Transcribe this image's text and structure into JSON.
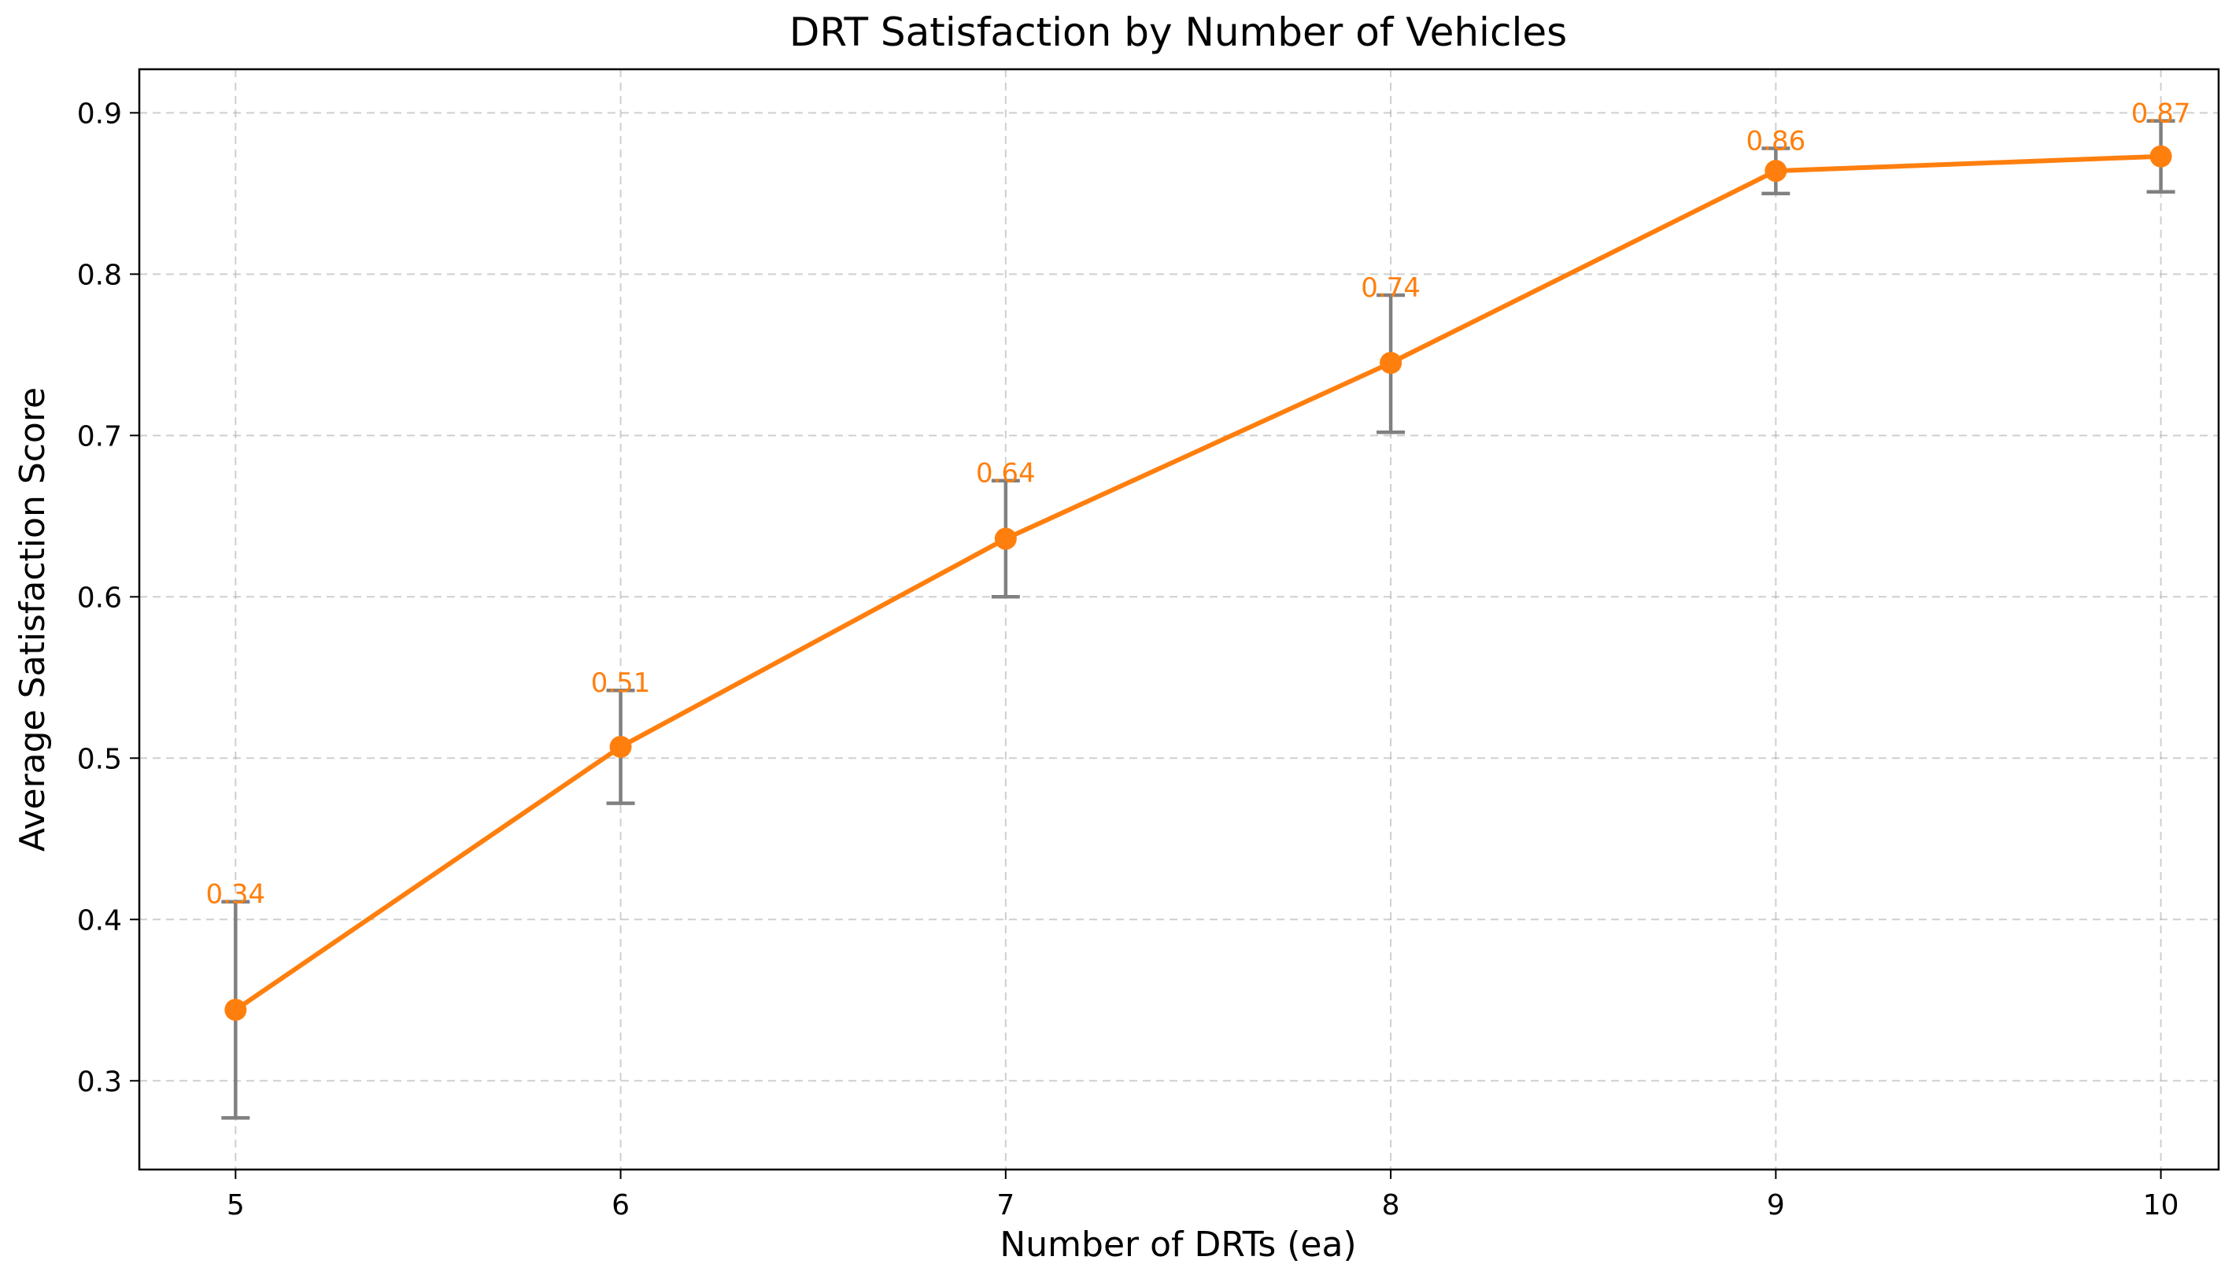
{
  "chart_data": {
    "type": "line",
    "title": "DRT Satisfaction by Number of Vehicles",
    "xlabel": "Number of DRTs (ea)",
    "ylabel": "Average Satisfaction Score",
    "x": [
      5,
      6,
      7,
      8,
      9,
      10
    ],
    "x_ticks": [
      "5",
      "6",
      "7",
      "8",
      "9",
      "10"
    ],
    "xlim": [
      4.75,
      10.15
    ],
    "y_ticks": [
      "0.3",
      "0.4",
      "0.5",
      "0.6",
      "0.7",
      "0.8",
      "0.9"
    ],
    "y_tick_values": [
      0.3,
      0.4,
      0.5,
      0.6,
      0.7,
      0.8,
      0.9
    ],
    "ylim": [
      0.245,
      0.927
    ],
    "grid": true,
    "series": [
      {
        "values": [
          0.344,
          0.507,
          0.636,
          0.745,
          0.864,
          0.873
        ],
        "error_low": [
          0.277,
          0.472,
          0.6,
          0.702,
          0.85,
          0.851
        ],
        "error_high": [
          0.411,
          0.542,
          0.672,
          0.787,
          0.878,
          0.895
        ],
        "data_labels": [
          "0.34",
          "0.51",
          "0.64",
          "0.74",
          "0.86",
          "0.87"
        ],
        "color": "#ff7f0e",
        "error_color": "#808080"
      }
    ]
  }
}
